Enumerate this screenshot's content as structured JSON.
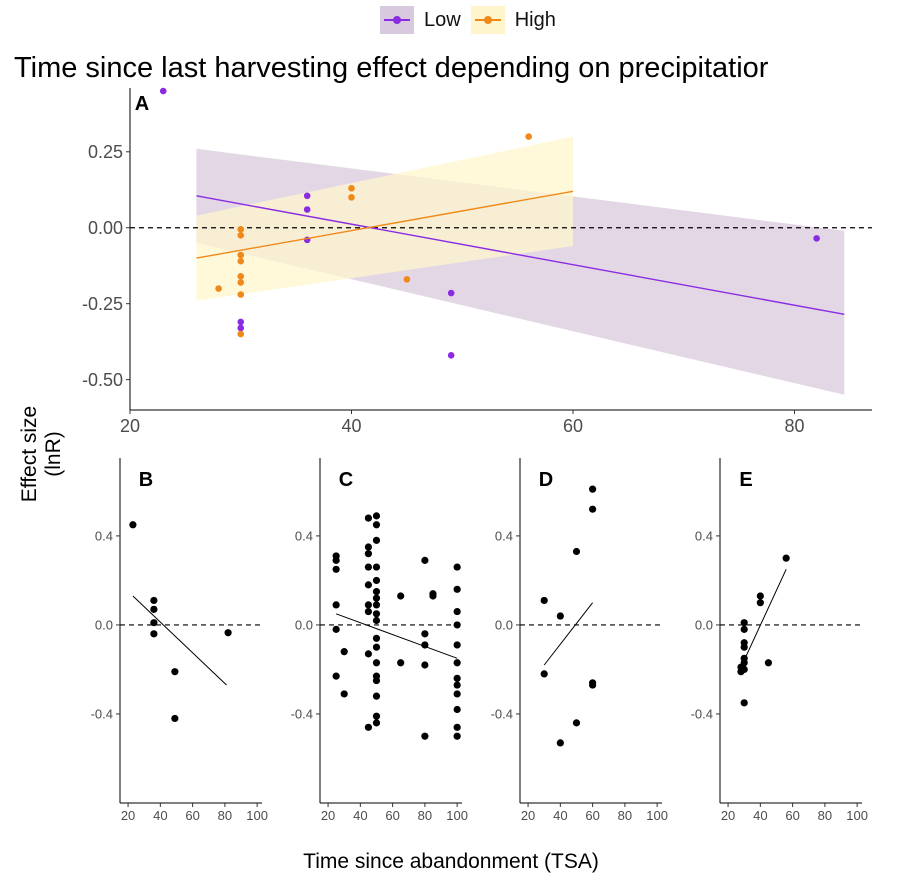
{
  "legend": {
    "items": [
      {
        "label": "Low",
        "color": "#8a2be2",
        "fill": "#d9c9de"
      },
      {
        "label": "High",
        "color": "#f0891a",
        "fill": "#fff5cc"
      }
    ]
  },
  "title": "Time since last harvesting effect depending on precipitatior",
  "ylabel": "Effect size (lnR)",
  "xlabel": "Time since abandonment (TSA)",
  "chart_data": [
    {
      "panel": "A",
      "type": "scatter",
      "xlim": [
        20,
        87
      ],
      "ylim": [
        -0.6,
        0.46
      ],
      "xticks": [
        20,
        40,
        60,
        80
      ],
      "yticks": [
        0.25,
        0.0,
        -0.25,
        -0.5
      ],
      "ytick_labels": [
        "0.25",
        "0.00",
        "-0.25",
        "-0.50"
      ],
      "reference_line": 0,
      "series": [
        {
          "name": "Low",
          "color": "#8a2be2",
          "points": [
            [
              23,
              0.45
            ],
            [
              30,
              -0.31
            ],
            [
              30,
              -0.33
            ],
            [
              36,
              0.105
            ],
            [
              36,
              0.06
            ],
            [
              36,
              -0.04
            ],
            [
              49,
              -0.215
            ],
            [
              49,
              -0.42
            ],
            [
              82,
              -0.035
            ]
          ],
          "fit": [
            [
              26,
              0.105
            ],
            [
              84.5,
              -0.285
            ]
          ],
          "band": {
            "x": [
              26,
              84.5
            ],
            "upper": [
              0.26,
              -0.01
            ],
            "lower": [
              -0.05,
              -0.55
            ]
          }
        },
        {
          "name": "High",
          "color": "#f0891a",
          "points": [
            [
              28,
              -0.2
            ],
            [
              30,
              -0.005
            ],
            [
              30,
              -0.025
            ],
            [
              30,
              -0.09
            ],
            [
              30,
              -0.11
            ],
            [
              30,
              -0.16
            ],
            [
              30,
              -0.18
            ],
            [
              30,
              -0.22
            ],
            [
              30,
              -0.35
            ],
            [
              40,
              0.13
            ],
            [
              40,
              0.1
            ],
            [
              45,
              -0.17
            ],
            [
              56,
              0.3
            ]
          ],
          "fit": [
            [
              26,
              -0.1
            ],
            [
              60,
              0.12
            ]
          ],
          "band": {
            "x": [
              26,
              60
            ],
            "upper": [
              0.04,
              0.3
            ],
            "lower": [
              -0.24,
              -0.06
            ]
          }
        }
      ]
    },
    {
      "panel": "B",
      "type": "scatter",
      "xlim": [
        15,
        103
      ],
      "ylim": [
        -0.8,
        0.75
      ],
      "xticks": [
        20,
        40,
        60,
        80,
        100
      ],
      "yticks": [
        0.4,
        0.0,
        -0.4
      ],
      "ytick_labels": [
        "0.4",
        "0.0",
        "-0.4"
      ],
      "reference_line": 0,
      "points": [
        [
          23,
          0.45
        ],
        [
          36,
          0.11
        ],
        [
          36,
          0.07
        ],
        [
          36,
          0.01
        ],
        [
          36,
          -0.04
        ],
        [
          49,
          -0.21
        ],
        [
          49,
          -0.42
        ],
        [
          82,
          -0.035
        ]
      ],
      "fit": [
        [
          23,
          0.13
        ],
        [
          81,
          -0.27
        ]
      ]
    },
    {
      "panel": "C",
      "type": "scatter",
      "xlim": [
        15,
        103
      ],
      "ylim": [
        -0.8,
        0.75
      ],
      "xticks": [
        20,
        40,
        60,
        80,
        100
      ],
      "yticks": [
        0.4,
        0.0,
        -0.4
      ],
      "ytick_labels": [
        "0.4",
        "0.0",
        "-0.4"
      ],
      "reference_line": 0,
      "points": [
        [
          25,
          0.31
        ],
        [
          25,
          0.29
        ],
        [
          25,
          0.25
        ],
        [
          25,
          0.09
        ],
        [
          25,
          -0.02
        ],
        [
          25,
          -0.23
        ],
        [
          30,
          -0.12
        ],
        [
          30,
          -0.31
        ],
        [
          45,
          0.48
        ],
        [
          45,
          0.35
        ],
        [
          45,
          0.32
        ],
        [
          45,
          0.26
        ],
        [
          45,
          0.18
        ],
        [
          45,
          0.09
        ],
        [
          45,
          0.06
        ],
        [
          45,
          -0.13
        ],
        [
          45,
          -0.46
        ],
        [
          50,
          0.49
        ],
        [
          50,
          0.45
        ],
        [
          50,
          0.38
        ],
        [
          50,
          0.26
        ],
        [
          50,
          0.2
        ],
        [
          50,
          0.15
        ],
        [
          50,
          0.12
        ],
        [
          50,
          0.09
        ],
        [
          50,
          0.05
        ],
        [
          50,
          0.02
        ],
        [
          50,
          -0.06
        ],
        [
          50,
          -0.1
        ],
        [
          50,
          -0.17
        ],
        [
          50,
          -0.23
        ],
        [
          50,
          -0.25
        ],
        [
          50,
          -0.32
        ],
        [
          50,
          -0.41
        ],
        [
          50,
          -0.44
        ],
        [
          65,
          0.13
        ],
        [
          65,
          -0.17
        ],
        [
          80,
          0.29
        ],
        [
          80,
          -0.04
        ],
        [
          80,
          -0.09
        ],
        [
          80,
          -0.18
        ],
        [
          80,
          -0.5
        ],
        [
          85,
          0.14
        ],
        [
          85,
          0.13
        ],
        [
          100,
          0.26
        ],
        [
          100,
          0.16
        ],
        [
          100,
          0.06
        ],
        [
          100,
          0.0
        ],
        [
          100,
          -0.09
        ],
        [
          100,
          -0.17
        ],
        [
          100,
          -0.24
        ],
        [
          100,
          -0.27
        ],
        [
          100,
          -0.31
        ],
        [
          100,
          -0.38
        ],
        [
          100,
          -0.46
        ],
        [
          100,
          -0.5
        ]
      ],
      "fit": [
        [
          25,
          0.05
        ],
        [
          100,
          -0.15
        ]
      ]
    },
    {
      "panel": "D",
      "type": "scatter",
      "xlim": [
        15,
        103
      ],
      "ylim": [
        -0.8,
        0.75
      ],
      "xticks": [
        20,
        40,
        60,
        80,
        100
      ],
      "yticks": [
        0.4,
        0.0,
        -0.4
      ],
      "ytick_labels": [
        "0.4",
        "0.0",
        "-0.4"
      ],
      "reference_line": 0,
      "points": [
        [
          30,
          0.11
        ],
        [
          30,
          -0.22
        ],
        [
          40,
          0.04
        ],
        [
          40,
          -0.53
        ],
        [
          50,
          0.33
        ],
        [
          50,
          -0.44
        ],
        [
          60,
          0.61
        ],
        [
          60,
          0.52
        ],
        [
          60,
          -0.26
        ],
        [
          60,
          -0.27
        ]
      ],
      "fit": [
        [
          30,
          -0.18
        ],
        [
          60,
          0.1
        ]
      ]
    },
    {
      "panel": "E",
      "type": "scatter",
      "xlim": [
        15,
        103
      ],
      "ylim": [
        -0.8,
        0.75
      ],
      "xticks": [
        20,
        40,
        60,
        80,
        100
      ],
      "yticks": [
        0.4,
        0.0,
        -0.4
      ],
      "ytick_labels": [
        "0.4",
        "0.0",
        "-0.4"
      ],
      "reference_line": 0,
      "points": [
        [
          28,
          -0.19
        ],
        [
          28,
          -0.21
        ],
        [
          30,
          0.01
        ],
        [
          30,
          -0.02
        ],
        [
          30,
          -0.08
        ],
        [
          30,
          -0.1
        ],
        [
          30,
          -0.15
        ],
        [
          30,
          -0.17
        ],
        [
          30,
          -0.2
        ],
        [
          30,
          -0.35
        ],
        [
          40,
          0.13
        ],
        [
          40,
          0.1
        ],
        [
          45,
          -0.17
        ],
        [
          56,
          0.3
        ]
      ],
      "fit": [
        [
          28,
          -0.19
        ],
        [
          56,
          0.25
        ]
      ]
    }
  ]
}
